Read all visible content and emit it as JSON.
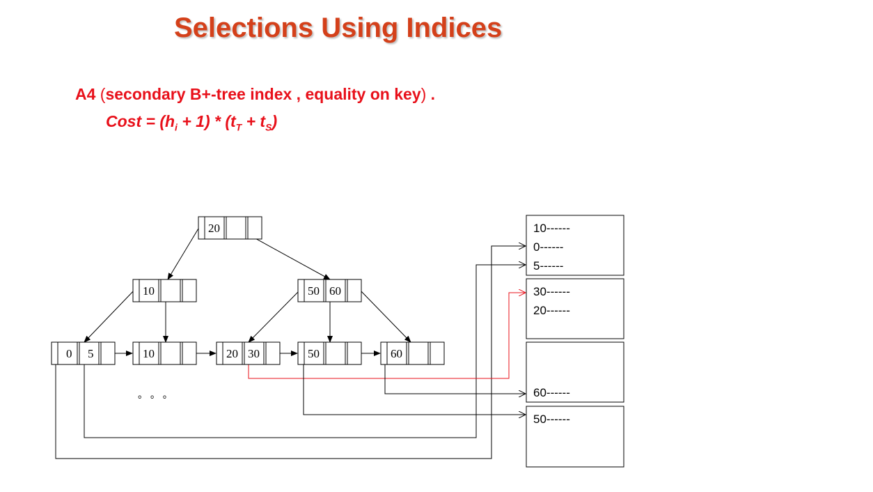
{
  "title": "Selections Using Indices",
  "algorithm": {
    "label": "A4",
    "description": "secondary B+-tree index , equality on key",
    "paren_open": "(",
    "paren_close": ")",
    "trailing": " .",
    "cost_label": "Cost",
    "cost_formula": {
      "part1": " = (h",
      "sub_i": "i",
      "part2": " + 1) * (t",
      "sub_T": "T",
      "part3": " + t",
      "sub_S": "S",
      "part4": ")"
    }
  },
  "tree": {
    "root": [
      "20",
      "",
      ""
    ],
    "internal_left": [
      "10",
      "",
      ""
    ],
    "internal_right": [
      "50",
      "60",
      ""
    ],
    "leaves": [
      [
        "0",
        "5",
        ""
      ],
      [
        "10",
        "",
        ""
      ],
      [
        "20",
        "30",
        ""
      ],
      [
        "50",
        "",
        ""
      ],
      [
        "60",
        "",
        ""
      ]
    ],
    "ellipsis": "。 。 。"
  },
  "buckets": [
    [
      "10------",
      "0------",
      "5------"
    ],
    [
      "30------",
      "20------"
    ],
    [
      "",
      "",
      "60------"
    ],
    [
      "50------"
    ]
  ],
  "colors": {
    "title": "#d4401a",
    "text_red": "#e8101a",
    "pointer_red": "#e8101a",
    "line": "#000000"
  }
}
